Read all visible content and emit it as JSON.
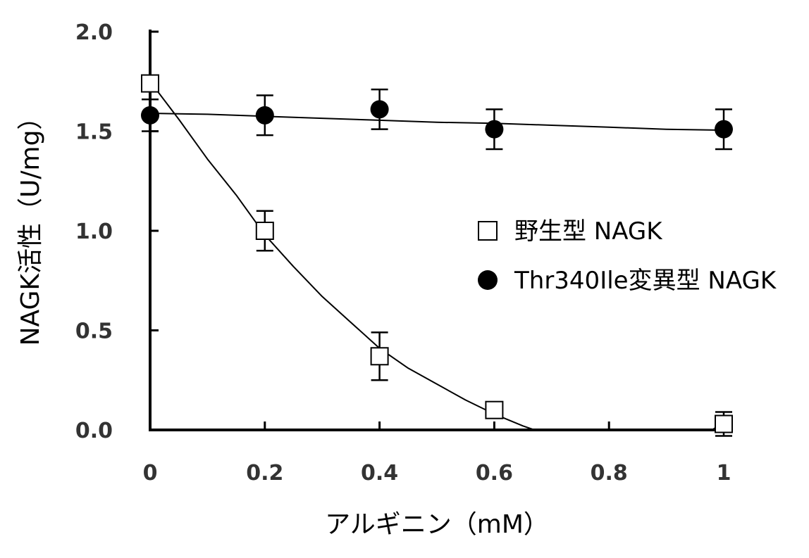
{
  "chart_data": {
    "type": "scatter",
    "xlabel": "アルギニン（mM）",
    "ylabel": "NAGK活性（U/mg）",
    "xlim": [
      0,
      1
    ],
    "ylim": [
      0,
      2
    ],
    "x_ticks": [
      0,
      0.2,
      0.4,
      0.6,
      0.8,
      1
    ],
    "x_tick_labels": [
      "0",
      "0.2",
      "0.4",
      "0.6",
      "0.8",
      "1"
    ],
    "y_ticks": [
      0,
      0.5,
      1.0,
      1.5,
      2.0
    ],
    "y_tick_labels": [
      "0.0",
      "0.5",
      "1.0",
      "1.5",
      "2.0"
    ],
    "grid": false,
    "legend_position": "right-middle",
    "series": [
      {
        "name": "野生型 NAGK",
        "marker": "open-square",
        "color": "#000000",
        "points": [
          {
            "x": 0,
            "y": 1.74,
            "err": 0
          },
          {
            "x": 0.2,
            "y": 1.0,
            "err": 0.1
          },
          {
            "x": 0.4,
            "y": 0.37,
            "err": 0.12
          },
          {
            "x": 0.6,
            "y": 0.1,
            "err": 0
          },
          {
            "x": 1,
            "y": 0.03,
            "err": 0.06
          }
        ],
        "fit_curve": [
          [
            0,
            1.75
          ],
          [
            0.05,
            1.56
          ],
          [
            0.1,
            1.36
          ],
          [
            0.15,
            1.18
          ],
          [
            0.2,
            0.98
          ],
          [
            0.25,
            0.82
          ],
          [
            0.3,
            0.67
          ],
          [
            0.35,
            0.54
          ],
          [
            0.4,
            0.41
          ],
          [
            0.45,
            0.31
          ],
          [
            0.5,
            0.23
          ],
          [
            0.55,
            0.15
          ],
          [
            0.6,
            0.08
          ],
          [
            0.65,
            0.02
          ],
          [
            0.67,
            0.0
          ],
          [
            0.98,
            0.0
          ],
          [
            1.0,
            0.04
          ]
        ]
      },
      {
        "name": "Thr340Ile変異型 NAGK",
        "marker": "filled-circle",
        "color": "#000000",
        "points": [
          {
            "x": 0,
            "y": 1.58,
            "err": 0.08
          },
          {
            "x": 0.2,
            "y": 1.58,
            "err": 0.1
          },
          {
            "x": 0.4,
            "y": 1.61,
            "err": 0.1
          },
          {
            "x": 0.6,
            "y": 1.51,
            "err": 0.1
          },
          {
            "x": 1,
            "y": 1.51,
            "err": 0.1
          }
        ],
        "fit_curve": [
          [
            0,
            1.59
          ],
          [
            0.1,
            1.585
          ],
          [
            0.2,
            1.575
          ],
          [
            0.3,
            1.565
          ],
          [
            0.4,
            1.555
          ],
          [
            0.5,
            1.545
          ],
          [
            0.6,
            1.54
          ],
          [
            0.7,
            1.53
          ],
          [
            0.8,
            1.52
          ],
          [
            0.9,
            1.51
          ],
          [
            1.0,
            1.505
          ]
        ]
      }
    ]
  }
}
